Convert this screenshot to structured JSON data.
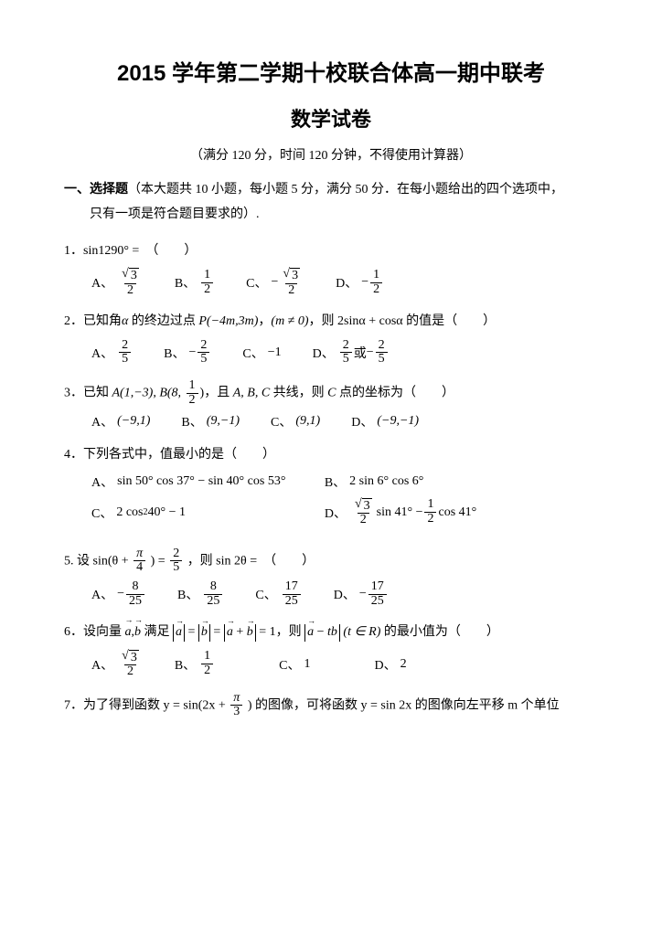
{
  "title": "2015 学年第二学期十校联合体高一期中联考",
  "subtitle": "数学试卷",
  "info": "（满分 120 分，时间 120 分钟，不得使用计算器）",
  "section1_label": "一、选择题",
  "section1_desc": "（本大题共 10 小题，每小题 5 分，满分 50 分．在每小题给出的四个选项中，",
  "section1_desc2": "只有一项是符合题目要求的）.",
  "q1_stem": "1．sin1290° =　（　　）",
  "A": "A、",
  "B": "B、",
  "C": "C、",
  "D": "D、",
  "n3": "3",
  "n2": "2",
  "n1": "1",
  "neg": "−",
  "q2_a": "2．已知角",
  "q2_alpha": "α",
  "q2_b": " 的终边过点 ",
  "q2_P": "P(−4m,3m)",
  "q2_c": "，",
  "q2_m": "(m ≠ 0)",
  "q2_d": "，则 2sinα + cosα 的值是（　　）",
  "q2_D_or": "或",
  "n5": "5",
  "q3_a": "3．已知 ",
  "q3_A": "A(1,−3), B(8, ",
  "q3_b": ")，且 ",
  "q3_abc": "A, B, C",
  "q3_c": " 共线，则 ",
  "q3_Cpt": "C",
  "q3_d": " 点的坐标为（　　）",
  "q3_oA": "(−9,1)",
  "q3_oB": "(9,−1)",
  "q3_oC": "(9,1)",
  "q3_oD": "(−9,−1)",
  "q4_stem": "4．下列各式中，值最小的是（　　）",
  "q4_oA": "sin 50° cos 37° − sin 40° cos 53°",
  "q4_oB": "2 sin 6° cos 6°",
  "q4_oC_a": "2 cos",
  "q4_oC_b": "40° − 1",
  "q4_oD_a": "sin 41° − ",
  "q4_oD_b": "cos 41°",
  "q5_a": "5. 设 sin(θ + ",
  "q5_b": ") = ",
  "q5_c": "，则 sin 2θ =　（　　）",
  "n4": "4",
  "pi": "π",
  "n8": "8",
  "n25": "25",
  "n17": "17",
  "q6_a": "6．设向量 ",
  "q6_b": " 满足 ",
  "q6_c": " = 1，则 ",
  "q6_d": "(t ∈ R)",
  "q6_e": " 的最小值为（　　）",
  "vec_a": "a",
  "vec_b": "b",
  "comma": ",",
  "eq": " = ",
  "q6_tb": "tb",
  "q6_plus": " + ",
  "q6_minus": " − ",
  "q6_oC": "1",
  "q6_oD": "2",
  "q7_a": "7．为了得到函数 y = sin(2x + ",
  "q7_b": ") 的图像，可将函数 y = sin 2x 的图像向左平移 m 个单位"
}
